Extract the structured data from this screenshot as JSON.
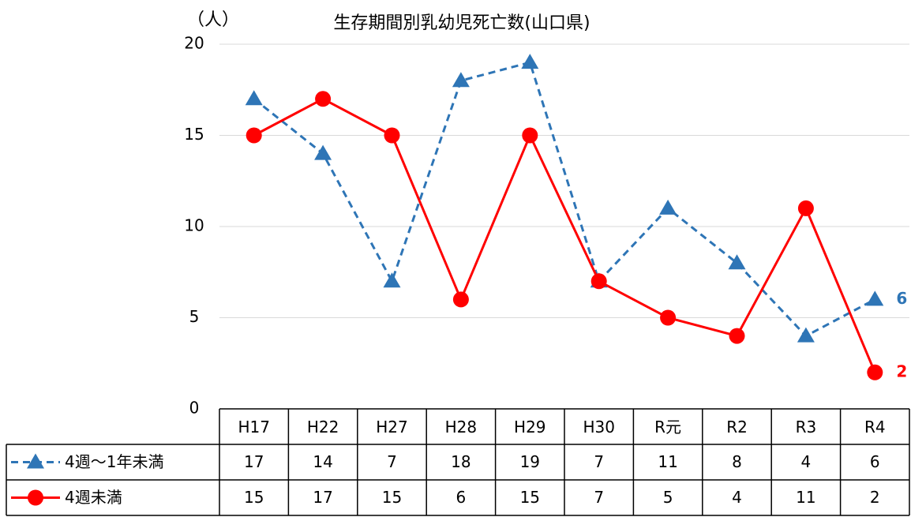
{
  "chart_data": {
    "type": "line",
    "title": "生存期間別乳幼児死亡数(山口県)",
    "y_label": "（人）",
    "categories": [
      "H17",
      "H22",
      "H27",
      "H28",
      "H29",
      "H30",
      "R元",
      "R2",
      "R3",
      "R4"
    ],
    "series": [
      {
        "name": "4週〜1年未満",
        "color": "#2e75b6",
        "marker": "triangle",
        "dashed": true,
        "values": [
          17,
          14,
          7,
          18,
          19,
          7,
          11,
          8,
          4,
          6
        ]
      },
      {
        "name": "4週未満",
        "color": "#ff0000",
        "marker": "circle",
        "dashed": false,
        "values": [
          15,
          17,
          15,
          6,
          15,
          7,
          5,
          4,
          11,
          2
        ]
      }
    ],
    "ylim": [
      0,
      20
    ],
    "yticks": [
      0,
      5,
      10,
      15,
      20
    ],
    "grid": true
  }
}
